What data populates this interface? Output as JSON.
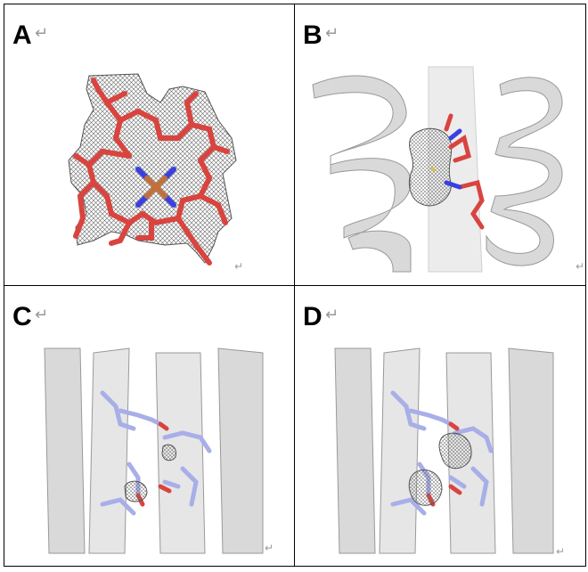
{
  "panels": [
    {
      "id": "A",
      "label": "A",
      "content": "electron density map of heme (porphyrin with central iron)"
    },
    {
      "id": "B",
      "label": "B",
      "content": "helical protein with heme ligand and electron density"
    },
    {
      "id": "C",
      "label": "C",
      "content": "helix bundle with side-chain residues and small density blobs"
    },
    {
      "id": "D",
      "label": "D",
      "content": "helix bundle with side-chain residues and larger density blobs"
    }
  ],
  "return_glyph": "↵",
  "colors": {
    "heme_carbon": "#d9443f",
    "nitrogen": "#3a3fe0",
    "iron": "#c2703a",
    "ribbon": "#d4d4d4",
    "ribbon_dark": "#9a9a9a",
    "residue": "#a8aee8",
    "mesh": "#555555"
  }
}
